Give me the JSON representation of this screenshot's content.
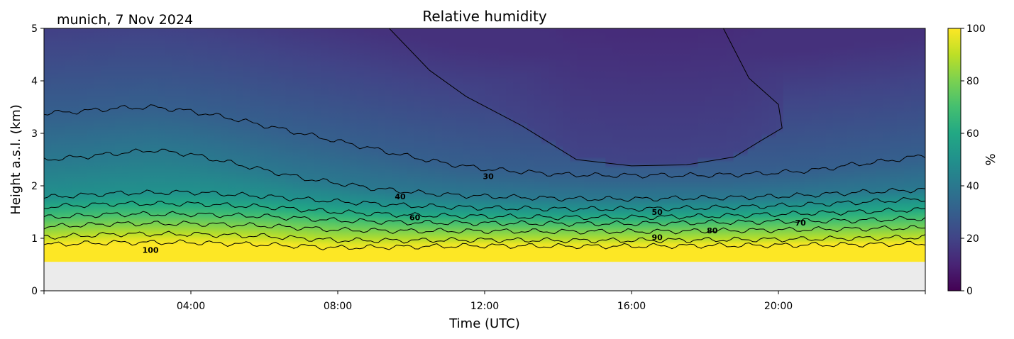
{
  "chart_data": {
    "type": "heatmap",
    "title": "Relative humidity",
    "subtitle": "munich, 7 Nov 2024",
    "xlabel": "Time (UTC)",
    "ylabel": "Height a.s.l. (km)",
    "x_ticks": [
      "04:00",
      "08:00",
      "12:00",
      "16:00",
      "20:00"
    ],
    "y_ticks": [
      "0",
      "1",
      "2",
      "3",
      "4",
      "5"
    ],
    "xlim_hours": [
      0,
      24
    ],
    "ylim_km": [
      0,
      5
    ],
    "no_data_below_km": 0.55,
    "colorbar": {
      "label": "%",
      "ticks": [
        "0",
        "20",
        "40",
        "60",
        "80",
        "100"
      ],
      "range": [
        0,
        100
      ],
      "colormap": "viridis"
    },
    "contour_levels": [
      10,
      20,
      30,
      40,
      50,
      60,
      70,
      80,
      90,
      100
    ],
    "contour_labels": [
      {
        "text": "30",
        "x": 12.1,
        "y": 2.18
      },
      {
        "text": "40",
        "x": 9.7,
        "y": 1.8
      },
      {
        "text": "60",
        "x": 10.1,
        "y": 1.4
      },
      {
        "text": "50",
        "x": 16.7,
        "y": 1.5
      },
      {
        "text": "80",
        "x": 18.2,
        "y": 1.15
      },
      {
        "text": "70",
        "x": 20.6,
        "y": 1.3
      },
      {
        "text": "90",
        "x": 16.7,
        "y": 1.02
      },
      {
        "text": "100",
        "x": 2.9,
        "y": 0.78
      }
    ],
    "contour_profiles_km": [
      {
        "level": 20,
        "x": [
          9.4,
          10.5,
          11.5,
          13,
          14.5,
          16,
          17.5,
          18.8,
          19.5,
          20.1,
          20.0,
          19.2,
          18.5
        ],
        "y": [
          5.0,
          4.2,
          3.7,
          3.15,
          2.5,
          2.38,
          2.4,
          2.55,
          2.85,
          3.1,
          3.55,
          4.05,
          5.0
        ]
      },
      {
        "level": 30,
        "x": [
          0,
          1,
          2,
          3,
          4,
          5,
          6,
          7,
          8,
          9,
          10,
          11,
          12,
          13,
          14,
          15,
          16,
          17,
          18,
          19,
          20,
          21,
          22,
          23,
          24
        ],
        "y": [
          3.38,
          3.42,
          3.48,
          3.5,
          3.42,
          3.3,
          3.15,
          3.0,
          2.85,
          2.7,
          2.55,
          2.42,
          2.32,
          2.27,
          2.22,
          2.2,
          2.2,
          2.2,
          2.2,
          2.22,
          2.25,
          2.3,
          2.4,
          2.48,
          2.58
        ]
      },
      {
        "level": 40,
        "x": [
          0,
          1,
          2,
          3,
          4,
          5,
          6,
          7,
          8,
          9,
          10,
          11,
          12,
          13,
          14,
          15,
          16,
          17,
          18,
          19,
          20,
          21,
          22,
          23,
          24
        ],
        "y": [
          2.5,
          2.55,
          2.62,
          2.68,
          2.6,
          2.45,
          2.3,
          2.15,
          2.05,
          1.95,
          1.88,
          1.83,
          1.8,
          1.78,
          1.76,
          1.75,
          1.75,
          1.76,
          1.77,
          1.78,
          1.8,
          1.83,
          1.87,
          1.9,
          1.93
        ]
      },
      {
        "level": 50,
        "x": [
          0,
          2,
          4,
          6,
          8,
          10,
          12,
          14,
          16,
          18,
          20,
          22,
          24
        ],
        "y": [
          1.78,
          1.86,
          1.88,
          1.8,
          1.7,
          1.62,
          1.58,
          1.56,
          1.56,
          1.58,
          1.62,
          1.68,
          1.75
        ]
      },
      {
        "level": 60,
        "x": [
          0,
          2,
          4,
          6,
          8,
          10,
          12,
          14,
          16,
          18,
          20,
          22,
          24
        ],
        "y": [
          1.6,
          1.66,
          1.66,
          1.6,
          1.5,
          1.44,
          1.42,
          1.4,
          1.4,
          1.42,
          1.46,
          1.5,
          1.55
        ]
      },
      {
        "level": 70,
        "x": [
          0,
          2,
          4,
          6,
          8,
          10,
          12,
          14,
          16,
          18,
          20,
          22,
          24
        ],
        "y": [
          1.4,
          1.46,
          1.46,
          1.42,
          1.34,
          1.3,
          1.29,
          1.28,
          1.28,
          1.3,
          1.32,
          1.34,
          1.38
        ]
      },
      {
        "level": 80,
        "x": [
          0,
          2,
          4,
          6,
          8,
          10,
          12,
          14,
          16,
          18,
          20,
          22,
          24
        ],
        "y": [
          1.22,
          1.28,
          1.28,
          1.24,
          1.16,
          1.14,
          1.14,
          1.13,
          1.13,
          1.14,
          1.16,
          1.18,
          1.2
        ]
      },
      {
        "level": 90,
        "x": [
          0,
          2,
          4,
          6,
          8,
          10,
          12,
          14,
          16,
          18,
          20,
          22,
          24
        ],
        "y": [
          1.02,
          1.08,
          1.08,
          1.04,
          0.96,
          0.96,
          0.97,
          0.96,
          0.96,
          0.97,
          0.98,
          1.0,
          1.02
        ]
      },
      {
        "level": 100,
        "x": [
          0,
          2,
          4,
          6,
          8,
          10,
          12,
          14,
          16,
          18,
          20,
          22,
          24
        ],
        "y": [
          0.88,
          0.92,
          0.92,
          0.88,
          0.82,
          0.84,
          0.86,
          0.85,
          0.85,
          0.86,
          0.87,
          0.88,
          0.9
        ]
      }
    ],
    "colors": {
      "background": "#ffffff",
      "no_data": "#ebebeb",
      "contour": "#000000"
    }
  }
}
